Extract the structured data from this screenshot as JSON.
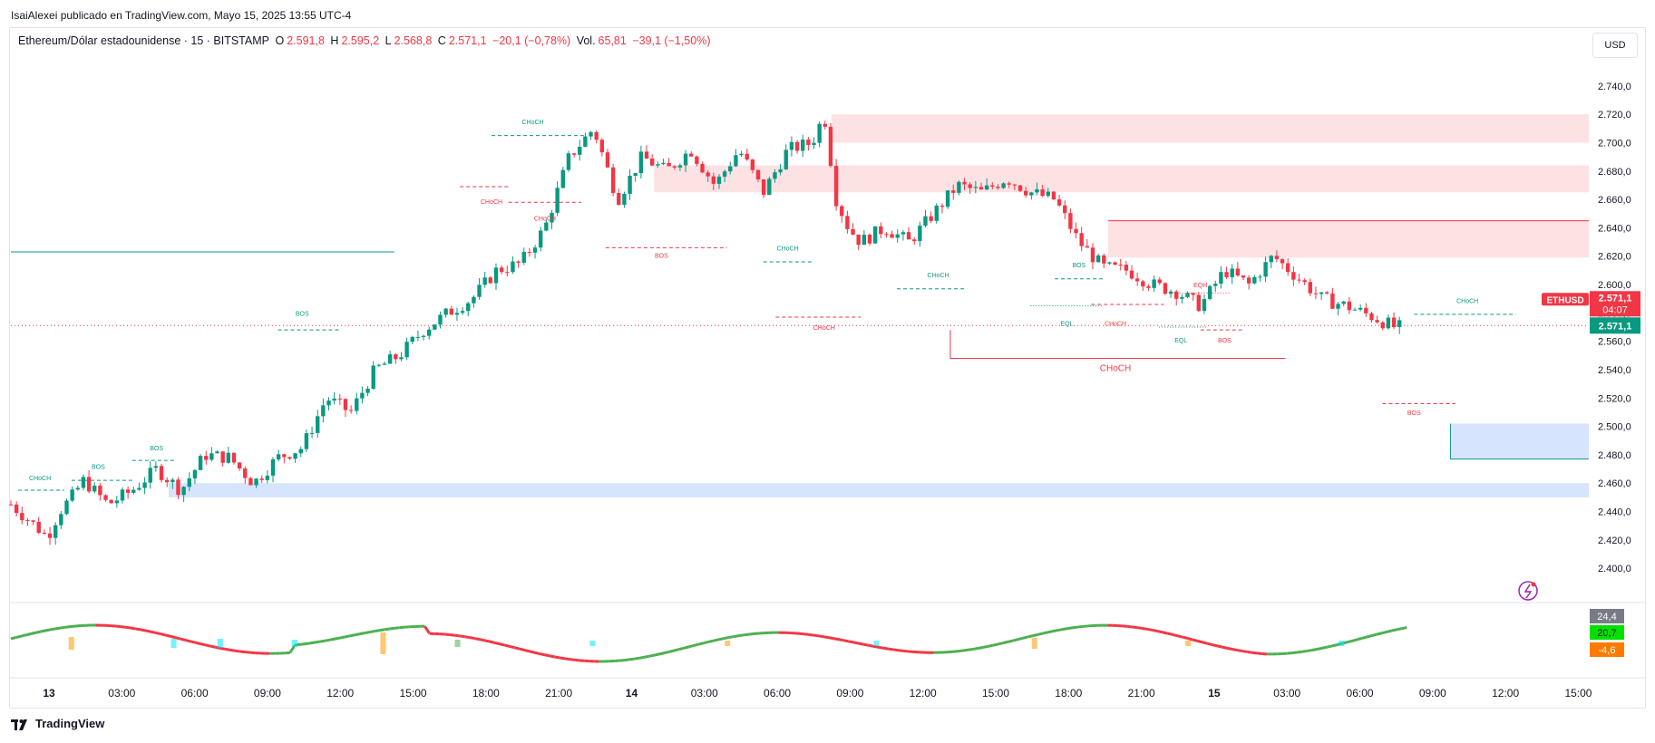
{
  "publisher": "IsaiAlexei publicado en TradingView.com, Mayo 15, 2025 13:55 UTC-4",
  "legend": {
    "symbol": "Ethereum/Dólar estadounidense · 15 · BITSTAMP",
    "o_label": "O",
    "o_value": "2.591,8",
    "h_label": "H",
    "h_value": "2.595,2",
    "l_label": "L",
    "l_value": "2.568,8",
    "c_label": "C",
    "c_value": "2.571,1",
    "change": "−20,1 (−0,78%)",
    "vol_label": "Vol.",
    "vol_value": "65,81",
    "vol_change": "−39,1 (−1,50%)"
  },
  "currency_button": "USD",
  "footer_brand": "TradingView",
  "colors": {
    "up": "#089981",
    "down": "#f23645",
    "supply_zone": "#fde2e4",
    "demand_zone": "#d6e4fd"
  },
  "chart_data": {
    "type": "candlestick",
    "price_axis": {
      "ticks": [
        2740,
        2720,
        2700,
        2680,
        2660,
        2640,
        2620,
        2600,
        2580,
        2560,
        2540,
        2520,
        2500,
        2480,
        2460,
        2440,
        2420,
        2400
      ],
      "tick_labels": [
        "2.740,0",
        "2.720,0",
        "2.700,0",
        "2.680,0",
        "2.660,0",
        "2.640,0",
        "2.620,0",
        "2.600,0",
        "2.580,0",
        "2.560,0",
        "2.540,0",
        "2.520,0",
        "2.500,0",
        "2.480,0",
        "2.460,0",
        "2.440,0",
        "2.420,0",
        "2.400,0"
      ],
      "range": [
        2390,
        2750
      ]
    },
    "time_axis": {
      "labels": [
        "13",
        "03:00",
        "06:00",
        "09:00",
        "12:00",
        "15:00",
        "18:00",
        "21:00",
        "14",
        "03:00",
        "06:00",
        "09:00",
        "12:00",
        "15:00",
        "18:00",
        "21:00",
        "15",
        "03:00",
        "06:00",
        "09:00",
        "12:00",
        "15:00"
      ],
      "bold_labels": [
        "13",
        "14",
        "15"
      ],
      "range": [
        0,
        65
      ]
    },
    "symbol_label": "ETHUSD",
    "last_price": "2.571,1",
    "countdown": "04:07",
    "bid_price": "2.571,1",
    "last_price_value": 2571.1,
    "candles_path": [
      [
        0,
        2445
      ],
      [
        1,
        2430
      ],
      [
        1.5,
        2422
      ],
      [
        2,
        2440
      ],
      [
        2.5,
        2450
      ],
      [
        3,
        2462
      ],
      [
        4,
        2445
      ],
      [
        5,
        2455
      ],
      [
        6,
        2470
      ],
      [
        7,
        2455
      ],
      [
        8,
        2480
      ],
      [
        9,
        2478
      ],
      [
        10,
        2460
      ],
      [
        11,
        2478
      ],
      [
        12,
        2485
      ],
      [
        13,
        2520
      ],
      [
        14,
        2510
      ],
      [
        15,
        2540
      ],
      [
        16,
        2550
      ],
      [
        17,
        2568
      ],
      [
        18,
        2580
      ],
      [
        19,
        2590
      ],
      [
        20,
        2610
      ],
      [
        21,
        2615
      ],
      [
        22,
        2640
      ],
      [
        23,
        2690
      ],
      [
        24,
        2710
      ],
      [
        25,
        2660
      ],
      [
        26,
        2690
      ],
      [
        27,
        2680
      ],
      [
        28,
        2695
      ],
      [
        29,
        2670
      ],
      [
        30,
        2695
      ],
      [
        31,
        2665
      ],
      [
        32,
        2695
      ],
      [
        33,
        2700
      ],
      [
        33.5,
        2720
      ],
      [
        34,
        2660
      ],
      [
        34.5,
        2640
      ],
      [
        35,
        2630
      ],
      [
        36,
        2640
      ],
      [
        37,
        2630
      ],
      [
        38,
        2650
      ],
      [
        39,
        2670
      ],
      [
        40,
        2665
      ],
      [
        41,
        2675
      ],
      [
        42,
        2665
      ],
      [
        43,
        2660
      ],
      [
        44,
        2630
      ],
      [
        45,
        2612
      ],
      [
        46,
        2610
      ],
      [
        47,
        2600
      ],
      [
        48,
        2595
      ],
      [
        49,
        2585
      ],
      [
        50,
        2610
      ],
      [
        51,
        2600
      ],
      [
        52,
        2620
      ],
      [
        53,
        2605
      ],
      [
        54,
        2590
      ],
      [
        55,
        2585
      ],
      [
        56,
        2578
      ],
      [
        57,
        2570
      ]
    ],
    "zones": [
      {
        "kind": "supply",
        "t0": 33.8,
        "t1": 65,
        "p_lo": 2700,
        "p_hi": 2720
      },
      {
        "kind": "supply",
        "t0": 26.5,
        "t1": 65,
        "p_lo": 2665,
        "p_hi": 2684
      },
      {
        "kind": "supply",
        "t0": 45.2,
        "t1": 65,
        "p_lo": 2619,
        "p_hi": 2645
      },
      {
        "kind": "demand",
        "t0": 6.5,
        "t1": 65,
        "p_lo": 2450,
        "p_hi": 2460
      },
      {
        "kind": "demand",
        "t0": 59.3,
        "t1": 65,
        "p_lo": 2477,
        "p_hi": 2502
      }
    ],
    "structure_labels": [
      {
        "text": "CHoCH",
        "color": "up",
        "t": 1.2,
        "p": 2462,
        "line_t0": 0.3,
        "line_t1": 2.2,
        "line_p": 2455,
        "dash": true
      },
      {
        "text": "BOS",
        "color": "up",
        "t": 3.6,
        "p": 2470,
        "line_t0": 2.5,
        "line_t1": 5.0,
        "line_p": 2462,
        "dash": true
      },
      {
        "text": "BOS",
        "color": "up",
        "t": 6.0,
        "p": 2483,
        "line_t0": 5.0,
        "line_t1": 6.8,
        "line_p": 2476,
        "dash": true
      },
      {
        "text": "BOS",
        "color": "up",
        "t": 12.0,
        "p": 2578,
        "line_t0": 11.0,
        "line_t1": 13.5,
        "line_p": 2568,
        "dash": true
      },
      {
        "text": "CHoCH",
        "color": "up",
        "t": 21.5,
        "p": 2713,
        "line_t0": 19.8,
        "line_t1": 23.6,
        "line_p": 2705,
        "dash": true
      },
      {
        "text": "CHoCH",
        "color": "down",
        "t": 19.8,
        "p": 2657,
        "line_t0": 18.5,
        "line_t1": 20.5,
        "line_p": 2669,
        "dash": true
      },
      {
        "text": "CHoCH",
        "color": "down",
        "t": 22.0,
        "p": 2645,
        "line_t0": 20.5,
        "line_t1": 23.5,
        "line_p": 2658,
        "dash": true
      },
      {
        "text": "BOS",
        "color": "down",
        "t": 26.8,
        "p": 2619,
        "line_t0": 24.5,
        "line_t1": 29.5,
        "line_p": 2626,
        "dash": true
      },
      {
        "text": "CHoCH",
        "color": "up",
        "t": 32.0,
        "p": 2624,
        "line_t0": 31.0,
        "line_t1": 33.0,
        "line_p": 2616,
        "dash": true
      },
      {
        "text": "CHoCH",
        "color": "down",
        "t": 33.5,
        "p": 2568,
        "line_t0": 31.5,
        "line_t1": 35.0,
        "line_p": 2577,
        "dash": true
      },
      {
        "text": "CHoCH",
        "color": "up",
        "t": 38.2,
        "p": 2605,
        "line_t0": 36.5,
        "line_t1": 39.3,
        "line_p": 2597,
        "dash": true
      },
      {
        "text": "BOS",
        "color": "up",
        "t": 44.0,
        "p": 2612,
        "line_t0": 43.0,
        "line_t1": 45.0,
        "line_p": 2604,
        "dash": true
      },
      {
        "text": "EQL",
        "color": "up",
        "t": 43.5,
        "p": 2571,
        "line_t0": 42.0,
        "line_t1": 45.0,
        "line_p": 2585,
        "dash": false
      },
      {
        "text": "CHoCH",
        "color": "down",
        "t": 45.5,
        "p": 2571,
        "line_t0": 44.5,
        "line_t1": 47.5,
        "line_p": 2586,
        "dash": true
      },
      {
        "text": "EQH",
        "color": "down",
        "t": 49.0,
        "p": 2598,
        "line_t0": 47.8,
        "line_t1": 50.2,
        "line_p": 2594,
        "dash": false
      },
      {
        "text": "EQL",
        "color": "up",
        "t": 48.2,
        "p": 2559,
        "line_t0": 47.3,
        "line_t1": 49.3,
        "line_p": 2570,
        "dash": false
      },
      {
        "text": "BOS",
        "color": "down",
        "t": 50.0,
        "p": 2559,
        "line_t0": 49.0,
        "line_t1": 50.8,
        "line_p": 2568,
        "dash": true
      },
      {
        "text": "CHoCH",
        "color": "up",
        "t": 60.0,
        "p": 2587,
        "line_t0": 57.8,
        "line_t1": 62.0,
        "line_p": 2579,
        "dash": true
      },
      {
        "text": "BOS",
        "color": "down",
        "t": 57.8,
        "p": 2508,
        "line_t0": 56.5,
        "line_t1": 59.5,
        "line_p": 2516,
        "dash": true
      }
    ],
    "big_choch": {
      "text": "CHoCH",
      "t": 45.5,
      "p": 2539,
      "t0": 38.7,
      "t1": 52.5,
      "p_line": 2548,
      "p_top": 2568
    },
    "horizontal_lines": [
      {
        "color": "up",
        "t0": 0,
        "t1": 15.8,
        "p": 2623
      }
    ],
    "oscillator": {
      "labels": [
        "24,4",
        "20,7",
        "-4,6"
      ],
      "label_colors": [
        "#787b86",
        "#00e100",
        "#ff7b00"
      ]
    }
  }
}
